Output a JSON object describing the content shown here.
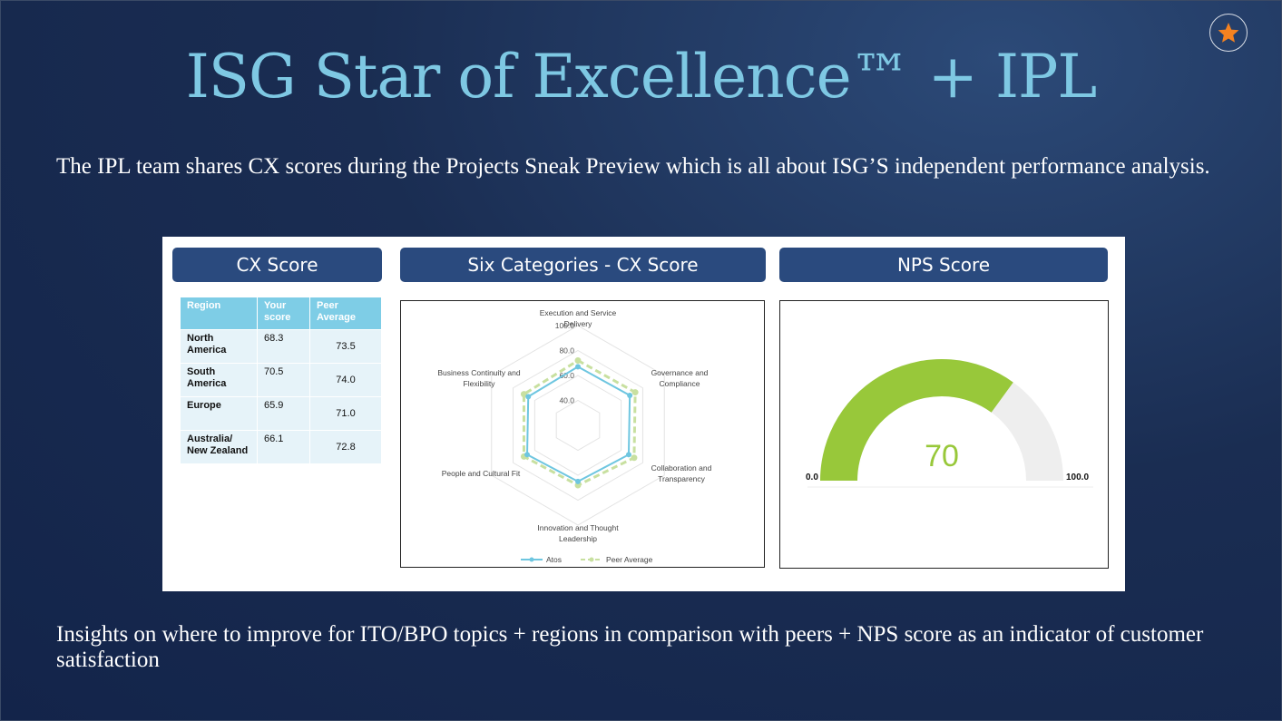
{
  "slide": {
    "title": "ISG Star of Excellence™ + IPL",
    "intro": "The IPL team shares CX scores during the Projects Sneak Preview which is all about ISG’S independent performance analysis.",
    "insights": "Insights on where to improve for ITO/BPO topics + regions in comparison with peers + NPS score as an indicator of customer satisfaction",
    "badge_icon": "star-icon",
    "accent_color": "#f58220",
    "title_color": "#7ec8e3"
  },
  "cx_score": {
    "header": "CX Score",
    "columns": [
      "Region",
      "Your score",
      "Peer Average"
    ],
    "rows": [
      {
        "region": "North America",
        "your_score": "68.3",
        "peer_average": "73.5"
      },
      {
        "region": "South America",
        "your_score": "70.5",
        "peer_average": "74.0"
      },
      {
        "region": "Europe",
        "your_score": "65.9",
        "peer_average": "71.0"
      },
      {
        "region": "Australia/ New Zealand",
        "your_score": "66.1",
        "peer_average": "72.8"
      }
    ]
  },
  "chart_data": [
    {
      "type": "radar",
      "title": "Six Categories - CX Score",
      "categories": [
        "Execution and Service Delivery",
        "Governance and Compliance",
        "Collaboration and Transparency",
        "Innovation and Thought Leadership",
        "People and Cultural Fit",
        "Business Continuity and Flexibility"
      ],
      "ticks": [
        "100.0",
        "80.0",
        "60.0",
        "40.0"
      ],
      "range": [
        20,
        100
      ],
      "series": [
        {
          "name": "Atos",
          "color": "#6ec6e0",
          "values": [
            67,
            68,
            67,
            65,
            67,
            66
          ]
        },
        {
          "name": "Peer Average",
          "color": "#c8e0a0",
          "values": [
            72,
            73,
            72,
            68,
            70,
            70
          ]
        }
      ]
    },
    {
      "type": "gauge",
      "title": "NPS Score",
      "value": "70",
      "min": "0.0",
      "max": "100.0",
      "range": [
        0,
        100
      ],
      "fill_color": "#98c83a",
      "track_color": "#eeeeee"
    }
  ]
}
